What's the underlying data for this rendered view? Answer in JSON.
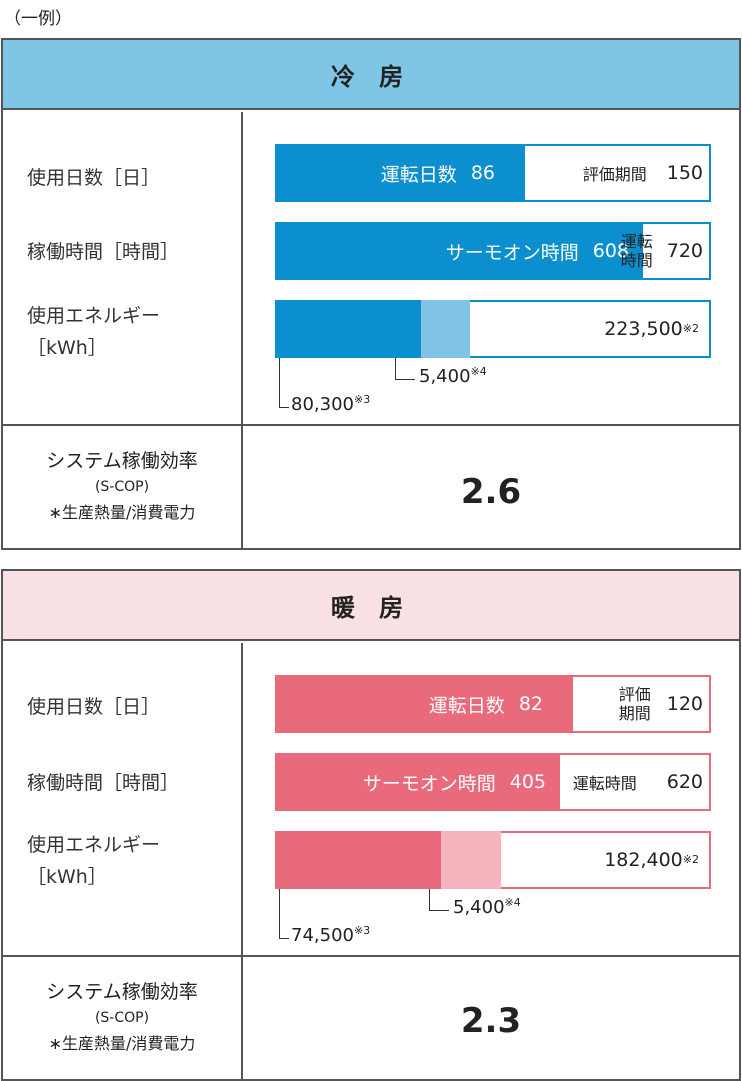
{
  "example_note": "（一例）",
  "colors": {
    "cooling_header": "#7ec5e6",
    "cooling_main": "#0b8fce",
    "cooling_light": "#7fc4e6",
    "heating_header": "#f9e0e3",
    "heating_main": "#e96b7b",
    "heating_light": "#f6b4be"
  },
  "labels": {
    "days": "使用日数［日］",
    "hours": "稼働時間［時間］",
    "energy_line1": "使用エネルギー",
    "energy_line2": "［kWh］",
    "scop_line1": "システム稼働効率",
    "scop_line2": "(S-COP)",
    "scop_line3": "∗生産熱量/消費電力"
  },
  "chart_data": [
    {
      "type": "bar",
      "title": "冷 房",
      "days": {
        "label": "運転日数",
        "value": 86,
        "period_label": "評価期間",
        "period": 150
      },
      "hours": {
        "label": "サーモオン時間",
        "value": 608,
        "total_label": "運転時間",
        "total_line1": "運転",
        "total_line2": "時間",
        "total": 720
      },
      "energy": {
        "total": 223500,
        "total_text": "223,500",
        "total_note": "※2",
        "primary": 80300,
        "primary_text": "80,300",
        "primary_note": "※3",
        "secondary": 5400,
        "secondary_text": "5,400",
        "secondary_note": "※4"
      },
      "scop": "2.6"
    },
    {
      "type": "bar",
      "title": "暖 房",
      "days": {
        "label": "運転日数",
        "value": 82,
        "period_label": "評価期間",
        "period_line1": "評価",
        "period_line2": "期間",
        "period": 120
      },
      "hours": {
        "label": "サーモオン時間",
        "value": 405,
        "total_label": "運転時間",
        "total": 620
      },
      "energy": {
        "total": 182400,
        "total_text": "182,400",
        "total_note": "※2",
        "primary": 74500,
        "primary_text": "74,500",
        "primary_note": "※3",
        "secondary": 5400,
        "secondary_text": "5,400",
        "secondary_note": "※4"
      },
      "scop": "2.3"
    }
  ]
}
